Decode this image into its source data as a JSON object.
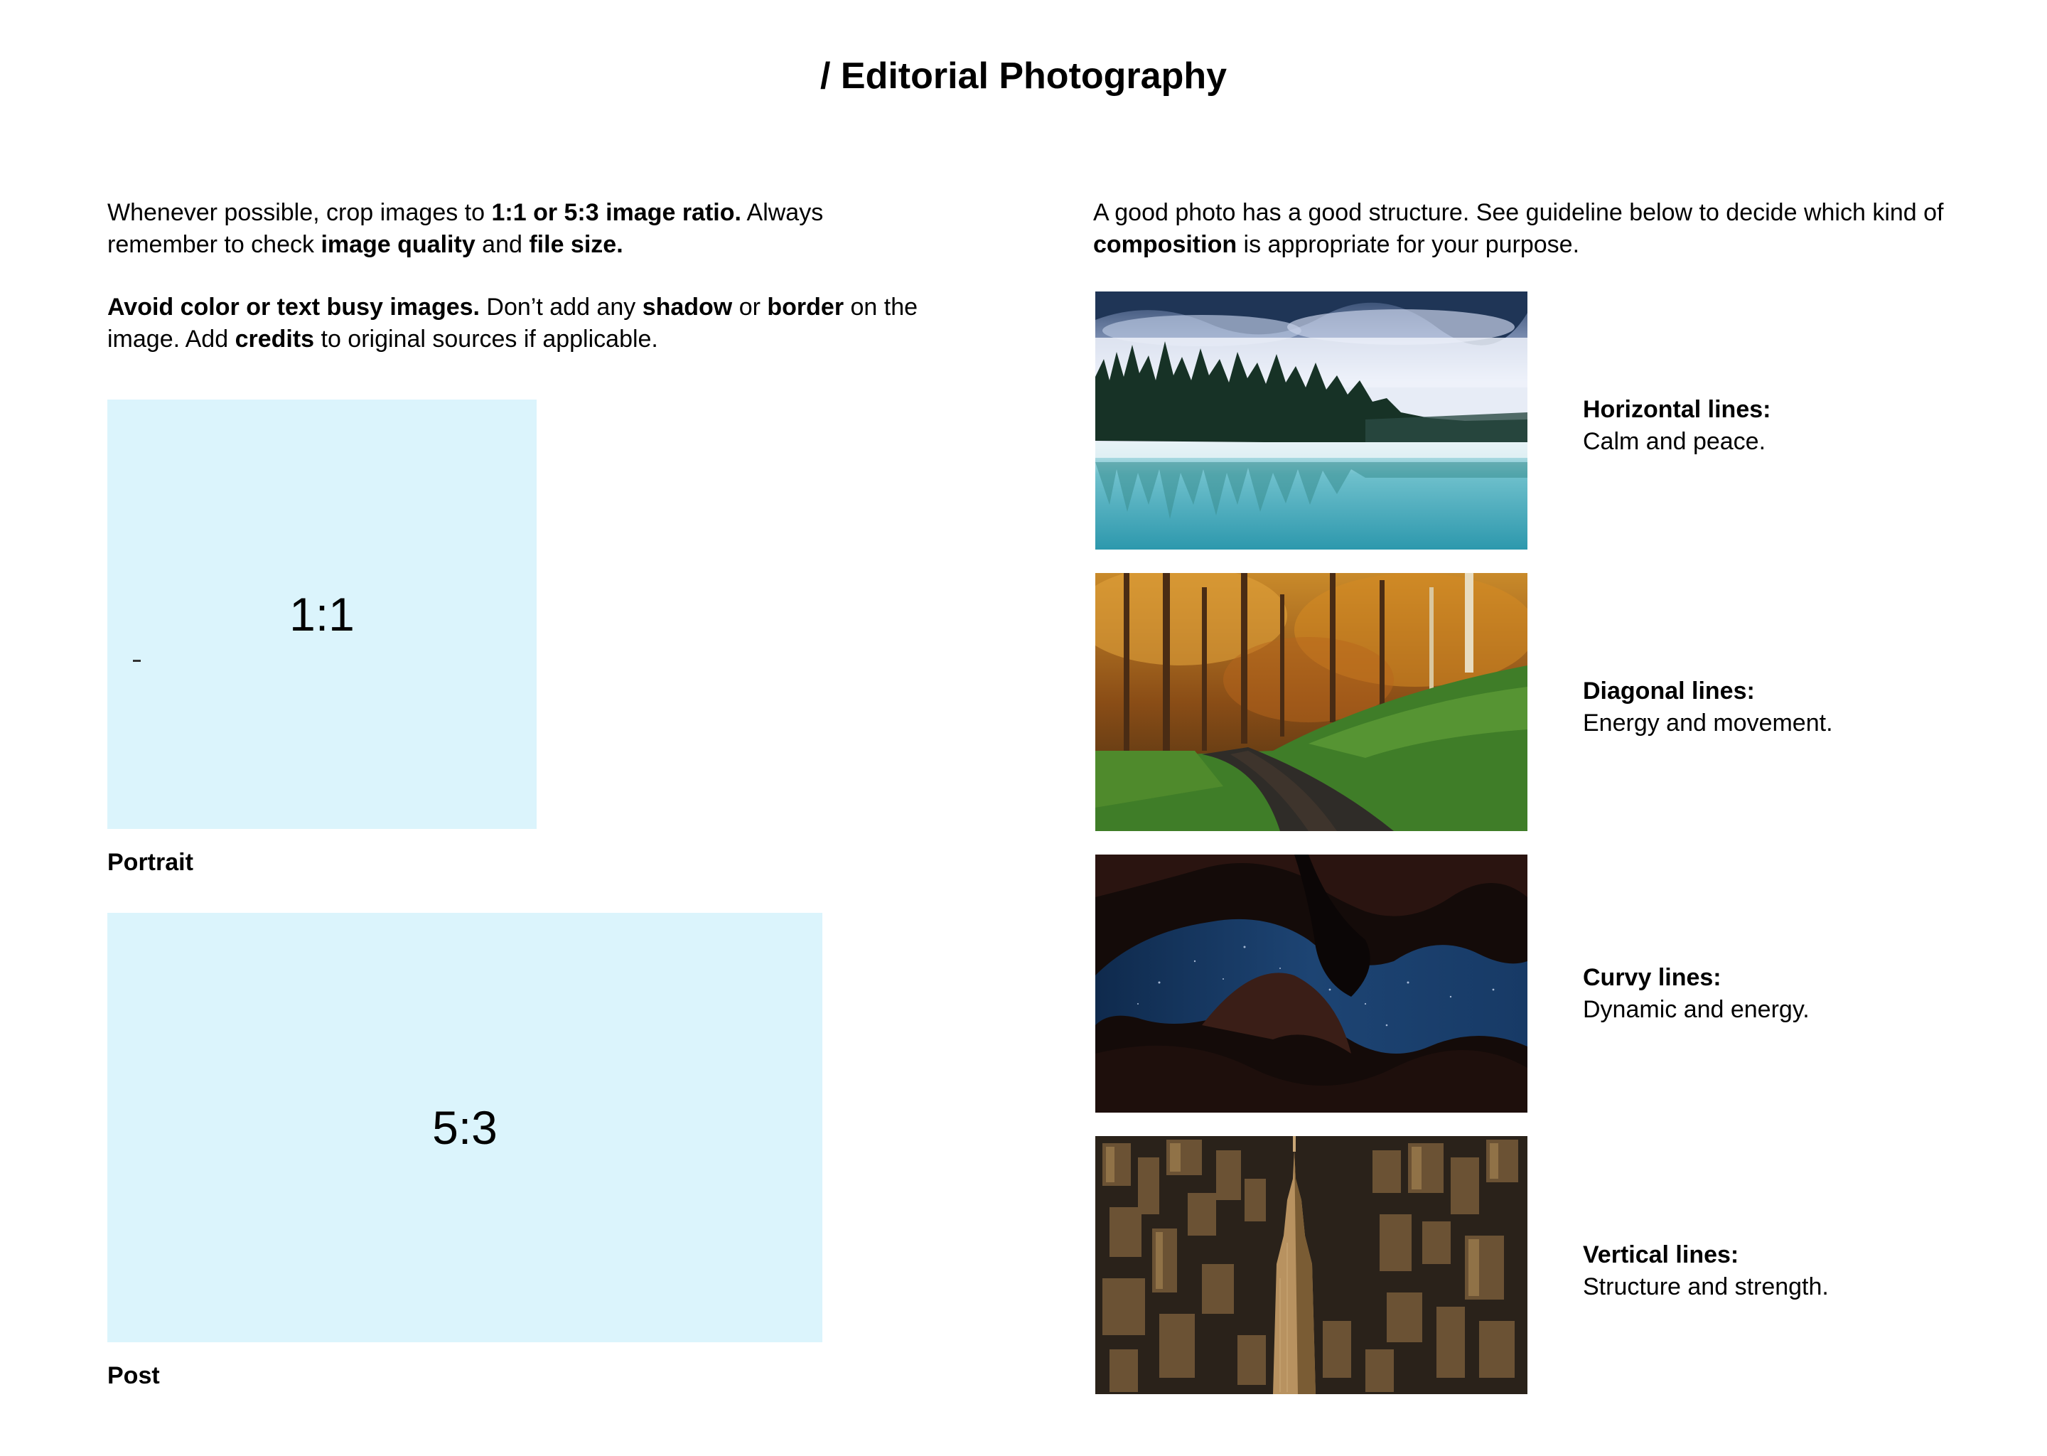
{
  "title": "/ Editorial Photography",
  "left": {
    "intro1": {
      "t1": "Whenever possible, crop images to ",
      "b1": "1:1 or 5:3 image ratio.",
      "t2": " Always remember to check ",
      "b2": "image quality",
      "t3": " and ",
      "b3": "file size."
    },
    "intro2": {
      "b1": "Avoid color or text busy images.",
      "t1": " Don’t add any ",
      "b2": "shadow",
      "t2": " or ",
      "b3": "border",
      "t3": " on the image. Add ",
      "b4": "credits",
      "t4": " to original sources if applicable."
    },
    "portrait": {
      "ratio": "1:1",
      "caption": "Portrait"
    },
    "post": {
      "ratio": "5:3",
      "caption": "Post"
    },
    "box_color": "#dbf4fc"
  },
  "right": {
    "intro": {
      "t1": "A good photo has a good structure. See guideline below to decide which kind of ",
      "b1": "composition",
      "t2": " is appropriate for your purpose."
    },
    "compositions": [
      {
        "name": "Horizontal lines:",
        "desc": "Calm and peace.",
        "image": "misty-lake-forest-photo"
      },
      {
        "name": "Diagonal lines:",
        "desc": "Energy and movement.",
        "image": "autumn-forest-path-photo"
      },
      {
        "name": "Curvy lines:",
        "desc": "Dynamic and energy.",
        "image": "canyon-night-sky-photo"
      },
      {
        "name": "Vertical lines:",
        "desc": "Structure and strength.",
        "image": "city-skyscraper-aerial-photo"
      }
    ]
  }
}
